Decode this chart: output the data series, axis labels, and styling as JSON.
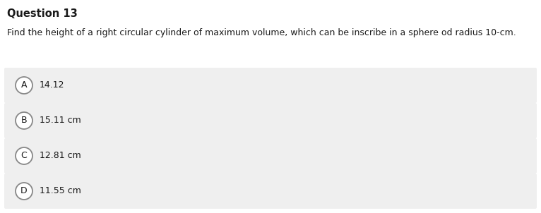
{
  "title": "Question 13",
  "question": "Find the height of a right circular cylinder of maximum volume, which can be inscribe in a sphere od radius 10-cm.",
  "options": [
    {
      "label": "A",
      "text": "14.12"
    },
    {
      "label": "B",
      "text": "15.11 cm"
    },
    {
      "label": "C",
      "text": "12.81 cm"
    },
    {
      "label": "D",
      "text": "11.55 cm"
    }
  ],
  "bg_color": "#ffffff",
  "option_bg_color": "#efefef",
  "title_fontsize": 10.5,
  "question_fontsize": 9.0,
  "option_fontsize": 9.0,
  "text_color": "#1a1a1a",
  "circle_edge_color": "#888888",
  "circle_bg_color": "#ffffff",
  "fig_width": 7.66,
  "fig_height": 3.02,
  "dpi": 100
}
